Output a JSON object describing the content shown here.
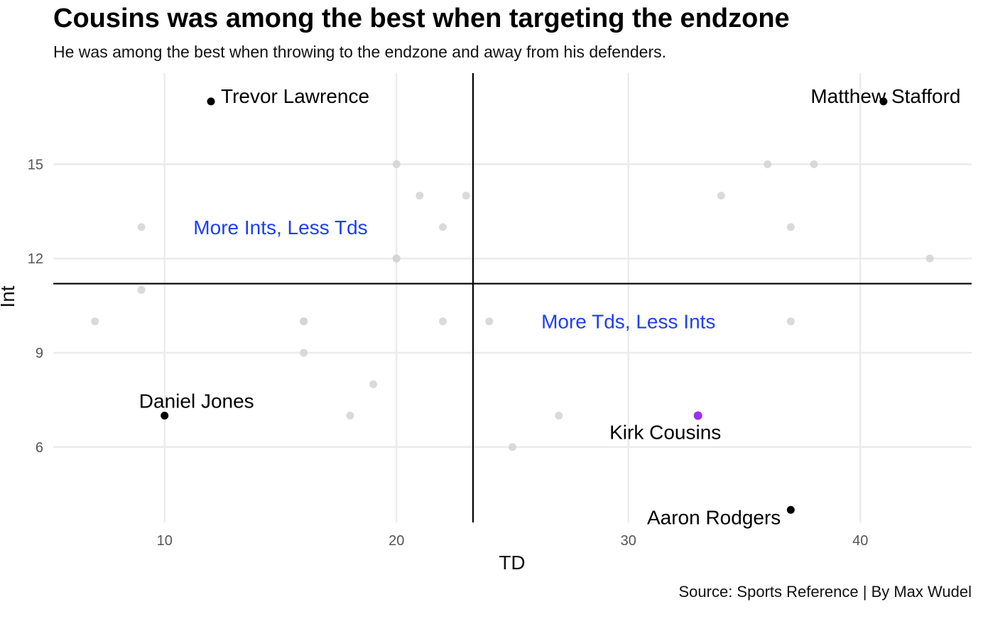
{
  "chart_data": {
    "type": "scatter",
    "title": "Cousins was among the best when targeting the endzone",
    "subtitle": "He was among the best when throwing to the endzone and away from his defenders.",
    "caption": "Source: Sports Reference | By Max Wudel",
    "xlabel": "TD",
    "ylabel": "Int",
    "xlim": [
      5.2,
      44.8
    ],
    "ylim": [
      3.6,
      17.9
    ],
    "xticks": [
      10,
      20,
      30,
      40
    ],
    "yticks": [
      6,
      9,
      12,
      15
    ],
    "grid": true,
    "ref_lines": {
      "x": 23.3,
      "y": 11.2
    },
    "background_points": [
      {
        "x": 7,
        "y": 10
      },
      {
        "x": 9,
        "y": 13
      },
      {
        "x": 9,
        "y": 11
      },
      {
        "x": 16,
        "y": 10
      },
      {
        "x": 16,
        "y": 10
      },
      {
        "x": 16,
        "y": 9
      },
      {
        "x": 18,
        "y": 7
      },
      {
        "x": 19,
        "y": 8
      },
      {
        "x": 20,
        "y": 15
      },
      {
        "x": 20,
        "y": 12
      },
      {
        "x": 20,
        "y": 12
      },
      {
        "x": 21,
        "y": 14
      },
      {
        "x": 22,
        "y": 13
      },
      {
        "x": 22,
        "y": 10
      },
      {
        "x": 23,
        "y": 14
      },
      {
        "x": 24,
        "y": 10
      },
      {
        "x": 25,
        "y": 6
      },
      {
        "x": 27,
        "y": 7
      },
      {
        "x": 34,
        "y": 14
      },
      {
        "x": 36,
        "y": 15
      },
      {
        "x": 37,
        "y": 13
      },
      {
        "x": 37,
        "y": 10
      },
      {
        "x": 38,
        "y": 15
      },
      {
        "x": 43,
        "y": 12
      }
    ],
    "highlighted_points": [
      {
        "name": "Trevor Lawrence",
        "x": 12,
        "y": 17,
        "anchor": "right"
      },
      {
        "name": "Matthew Stafford",
        "x": 41,
        "y": 17,
        "anchor": "center"
      },
      {
        "name": "Daniel Jones",
        "x": 10,
        "y": 7,
        "anchor": "above"
      },
      {
        "name": "Aaron Rodgers",
        "x": 37,
        "y": 4,
        "anchor": "left"
      }
    ],
    "featured_point": {
      "name": "Kirk Cousins",
      "x": 33,
      "y": 7,
      "anchor": "below-left"
    },
    "quadrant_labels": [
      {
        "text": "More Ints, Less Tds",
        "x": 15,
        "y": 13
      },
      {
        "text": "More Tds, Less Ints",
        "x": 30,
        "y": 10
      }
    ],
    "colors": {
      "background_point": "#d4d4d4",
      "highlight_point": "#000000",
      "featured_point": "#9b30f0",
      "quadrant_text": "#1c3ff2"
    }
  }
}
